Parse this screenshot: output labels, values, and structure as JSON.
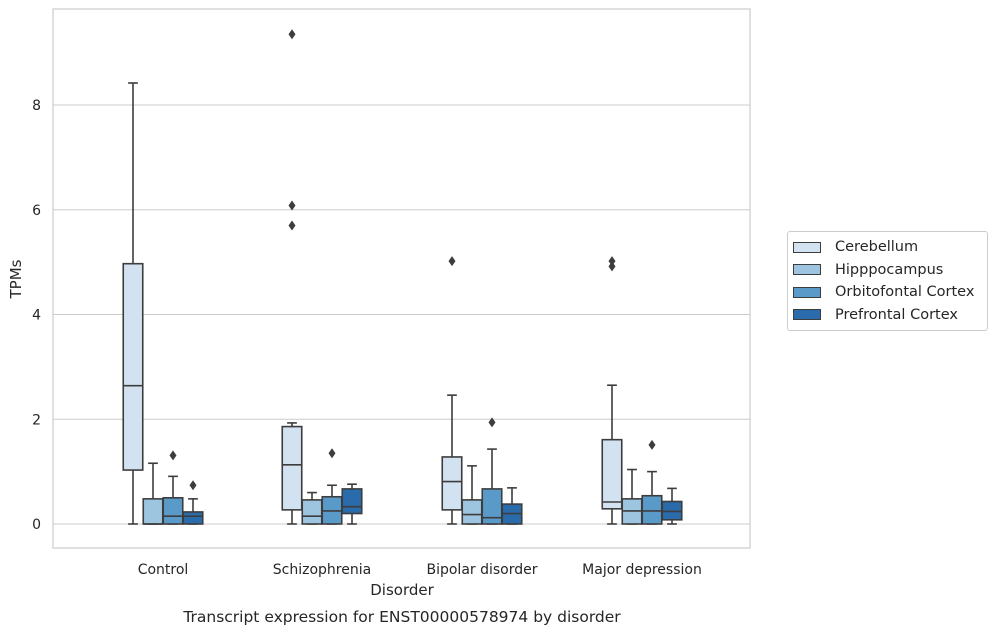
{
  "chart_data": {
    "type": "box",
    "title": "Transcript expression for ENST00000578974 by disorder",
    "xlabel": "Disorder",
    "ylabel": "TPMs",
    "ylim": [
      -0.45,
      9.8
    ],
    "yticks": [
      0,
      2,
      4,
      6,
      8
    ],
    "grid": "horizontal",
    "legend_position": "right",
    "categories": [
      "Control",
      "Schizophrenia",
      "Bipolar disorder",
      "Major depression"
    ],
    "series": [
      {
        "name": "Cerebellum",
        "color": "#d3e2f1",
        "boxes": [
          {
            "whisker_low": 0.0,
            "q1": 1.03,
            "median": 2.64,
            "q3": 4.97,
            "whisker_high": 8.42,
            "outliers": []
          },
          {
            "whisker_low": 0.0,
            "q1": 0.27,
            "median": 1.13,
            "q3": 1.86,
            "whisker_high": 1.93,
            "outliers": [
              5.7,
              6.08,
              9.35
            ]
          },
          {
            "whisker_low": 0.0,
            "q1": 0.27,
            "median": 0.81,
            "q3": 1.28,
            "whisker_high": 2.46,
            "outliers": [
              5.02
            ]
          },
          {
            "whisker_low": 0.0,
            "q1": 0.29,
            "median": 0.42,
            "q3": 1.61,
            "whisker_high": 2.65,
            "outliers": [
              4.92,
              5.02
            ]
          }
        ]
      },
      {
        "name": "Hipppocampus",
        "color": "#9ec5df",
        "boxes": [
          {
            "whisker_low": 0.0,
            "q1": 0.0,
            "median": 0.0,
            "q3": 0.48,
            "whisker_high": 1.16,
            "outliers": []
          },
          {
            "whisker_low": 0.0,
            "q1": 0.0,
            "median": 0.15,
            "q3": 0.46,
            "whisker_high": 0.6,
            "outliers": []
          },
          {
            "whisker_low": 0.0,
            "q1": 0.0,
            "median": 0.18,
            "q3": 0.46,
            "whisker_high": 1.11,
            "outliers": []
          },
          {
            "whisker_low": 0.0,
            "q1": 0.0,
            "median": 0.25,
            "q3": 0.48,
            "whisker_high": 1.04,
            "outliers": []
          }
        ]
      },
      {
        "name": "Orbitofontal Cortex",
        "color": "#5a9ac9",
        "boxes": [
          {
            "whisker_low": 0.0,
            "q1": 0.0,
            "median": 0.15,
            "q3": 0.5,
            "whisker_high": 0.91,
            "outliers": [
              1.31
            ]
          },
          {
            "whisker_low": 0.0,
            "q1": 0.0,
            "median": 0.25,
            "q3": 0.52,
            "whisker_high": 0.74,
            "outliers": [
              1.35
            ]
          },
          {
            "whisker_low": 0.0,
            "q1": 0.0,
            "median": 0.12,
            "q3": 0.67,
            "whisker_high": 1.43,
            "outliers": [
              1.94
            ]
          },
          {
            "whisker_low": 0.0,
            "q1": 0.0,
            "median": 0.25,
            "q3": 0.54,
            "whisker_high": 1.0,
            "outliers": [
              1.51
            ]
          }
        ]
      },
      {
        "name": "Prefrontal Cortex",
        "color": "#2a6bac",
        "boxes": [
          {
            "whisker_low": 0.0,
            "q1": 0.0,
            "median": 0.15,
            "q3": 0.23,
            "whisker_high": 0.48,
            "outliers": [
              0.74
            ]
          },
          {
            "whisker_low": 0.0,
            "q1": 0.2,
            "median": 0.33,
            "q3": 0.67,
            "whisker_high": 0.76,
            "outliers": []
          },
          {
            "whisker_low": 0.0,
            "q1": 0.0,
            "median": 0.2,
            "q3": 0.38,
            "whisker_high": 0.69,
            "outliers": []
          },
          {
            "whisker_low": 0.0,
            "q1": 0.08,
            "median": 0.24,
            "q3": 0.43,
            "whisker_high": 0.68,
            "outliers": []
          }
        ]
      }
    ]
  }
}
